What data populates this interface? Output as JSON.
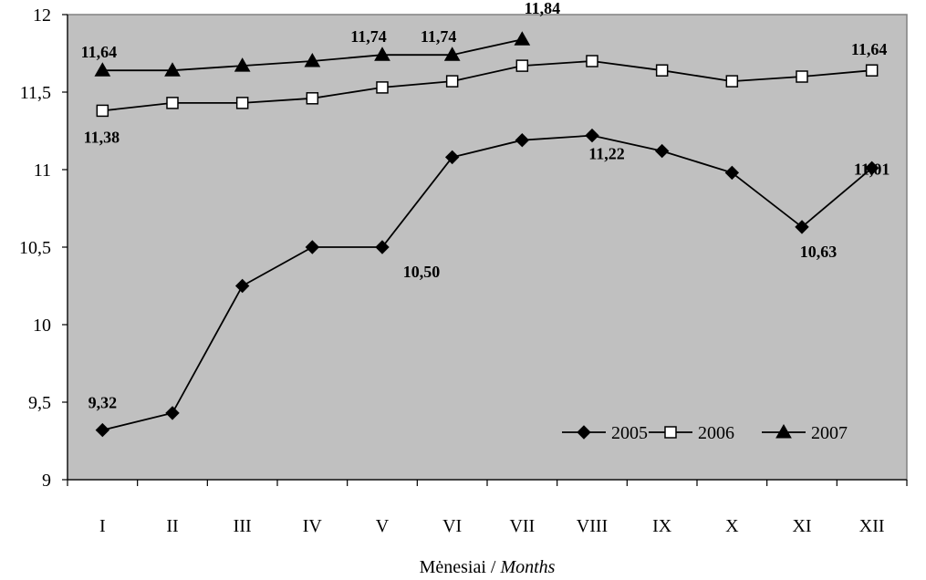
{
  "chart_data": {
    "type": "line",
    "categories": [
      "I",
      "II",
      "III",
      "IV",
      "V",
      "VI",
      "VII",
      "VIII",
      "IX",
      "X",
      "XI",
      "XII"
    ],
    "series": [
      {
        "name": "2005",
        "marker": "diamond",
        "values": [
          9.32,
          9.43,
          10.25,
          10.5,
          10.5,
          11.08,
          11.19,
          11.22,
          11.12,
          10.98,
          10.63,
          11.01
        ]
      },
      {
        "name": "2006",
        "marker": "square",
        "values": [
          11.38,
          11.43,
          11.43,
          11.46,
          11.53,
          11.57,
          11.67,
          11.7,
          11.64,
          11.57,
          11.6,
          11.64
        ]
      },
      {
        "name": "2007",
        "marker": "triangle",
        "values": [
          11.64,
          11.64,
          11.67,
          11.7,
          11.74,
          11.74,
          11.84,
          null,
          null,
          null,
          null,
          null
        ]
      }
    ],
    "data_labels": [
      {
        "series": "2005",
        "category": "I",
        "text": "9,32"
      },
      {
        "series": "2005",
        "category": "V",
        "text": "10,50"
      },
      {
        "series": "2005",
        "category": "VIII",
        "text": "11,22"
      },
      {
        "series": "2005",
        "category": "XI",
        "text": "10,63"
      },
      {
        "series": "2005",
        "category": "XII",
        "text": "11,01"
      },
      {
        "series": "2006",
        "category": "I",
        "text": "11,38"
      },
      {
        "series": "2006",
        "category": "XII",
        "text": "11,64"
      },
      {
        "series": "2007",
        "category": "I",
        "text": "11,64"
      },
      {
        "series": "2007",
        "category": "V",
        "text": "11,74"
      },
      {
        "series": "2007",
        "category": "VI",
        "text": "11,74"
      },
      {
        "series": "2007",
        "category": "VII",
        "text": "11,84"
      }
    ],
    "ylim": [
      9,
      12
    ],
    "yticks": [
      "9",
      "9,5",
      "10",
      "10,5",
      "11",
      "11,5",
      "12"
    ],
    "xlabel_plain": "Mėnesiai / ",
    "xlabel_italic": "Months",
    "ylabel": "",
    "legend_position": "bottom-right inside plot",
    "grid": false,
    "plot_background": "#c0c0c0",
    "line_color": "#000000"
  }
}
